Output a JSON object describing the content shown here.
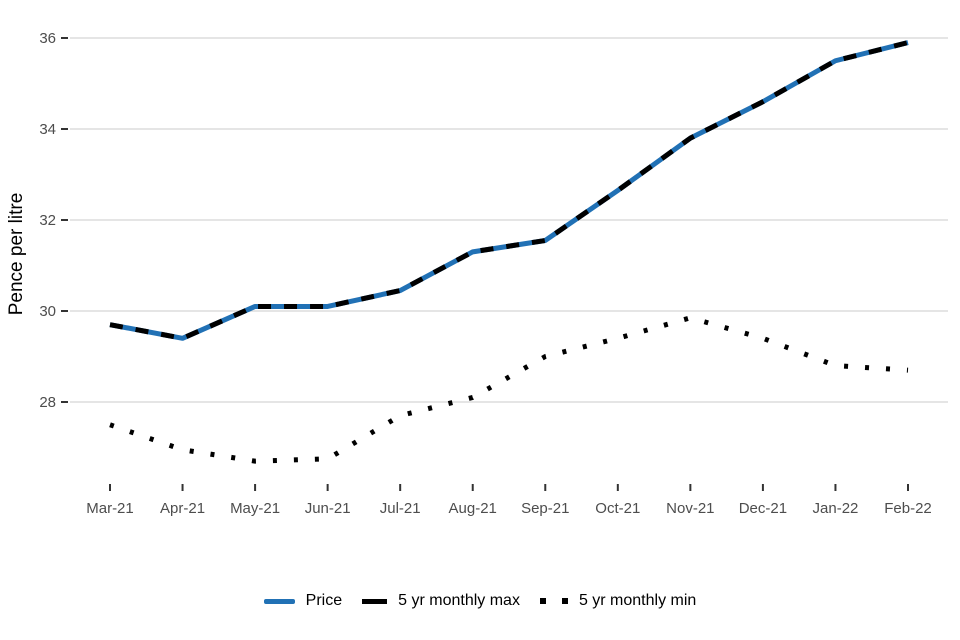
{
  "chart_data": {
    "type": "line",
    "title": "",
    "xlabel": "",
    "ylabel": "Pence per litre",
    "categories": [
      "Mar-21",
      "Apr-21",
      "May-21",
      "Jun-21",
      "Jul-21",
      "Aug-21",
      "Sep-21",
      "Oct-21",
      "Nov-21",
      "Dec-21",
      "Jan-22",
      "Feb-22"
    ],
    "yticks": [
      28,
      30,
      32,
      34,
      36
    ],
    "ylim": [
      26.3,
      36.5
    ],
    "grid": "horizontal-only",
    "legend_position": "bottom-center",
    "series": [
      {
        "name": "Price",
        "style": "solid",
        "color": "#2171b5",
        "values": [
          29.7,
          29.4,
          30.1,
          30.1,
          30.45,
          31.3,
          31.55,
          32.65,
          33.8,
          34.6,
          35.5,
          35.9
        ]
      },
      {
        "name": "5 yr monthly max",
        "style": "dashed",
        "color": "#000000",
        "values": [
          29.7,
          29.4,
          30.1,
          30.1,
          30.45,
          31.3,
          31.55,
          32.65,
          33.8,
          34.6,
          35.5,
          35.9
        ]
      },
      {
        "name": "5 yr monthly min",
        "style": "dotted",
        "color": "#000000",
        "values": [
          27.5,
          26.95,
          26.7,
          26.75,
          27.7,
          28.1,
          29.0,
          29.4,
          29.85,
          29.4,
          28.8,
          28.7
        ]
      }
    ],
    "colors": {
      "background": "#ffffff",
      "gridline": "#e5e5e5",
      "tick_mark": "#333333",
      "tick_label": "#4d4d4d",
      "axis_title": "#000000",
      "legend_text": "#000000",
      "price_blue": "#2171b5",
      "series_black": "#000000"
    }
  }
}
